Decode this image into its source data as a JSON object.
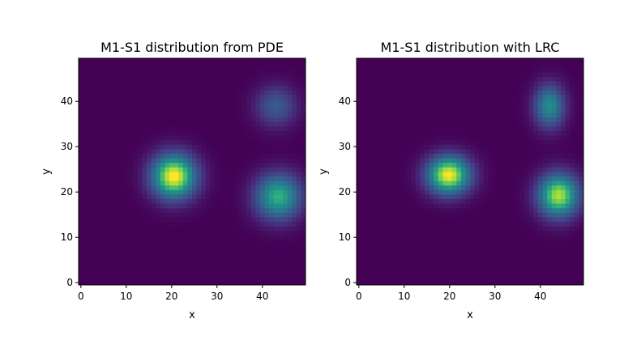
{
  "chart_data": [
    {
      "type": "heatmap",
      "title": "M1-S1 distribution from PDE",
      "xlabel": "x",
      "ylabel": "y",
      "xlim": [
        -0.5,
        49.5
      ],
      "ylim": [
        -0.5,
        49.5
      ],
      "xticks": [
        0,
        10,
        20,
        30,
        40
      ],
      "yticks": [
        0,
        10,
        20,
        30,
        40
      ],
      "colormap": "viridis",
      "grid": false,
      "blobs": [
        {
          "x": 20.5,
          "y": 23.5,
          "amplitude": 1.0,
          "sigma_x": 3.5,
          "sigma_y": 3.5
        },
        {
          "x": 43.5,
          "y": 19.0,
          "amplitude": 0.72,
          "sigma_x": 3.6,
          "sigma_y": 3.6
        },
        {
          "x": 43.0,
          "y": 39.0,
          "amplitude": 0.35,
          "sigma_x": 3.2,
          "sigma_y": 3.2
        }
      ]
    },
    {
      "type": "heatmap",
      "title": "M1-S1 distribution with LRC",
      "xlabel": "x",
      "ylabel": "y",
      "xlim": [
        -0.5,
        49.5
      ],
      "ylim": [
        -0.5,
        49.5
      ],
      "xticks": [
        0,
        10,
        20,
        30,
        40
      ],
      "yticks": [
        0,
        10,
        20,
        30,
        40
      ],
      "colormap": "viridis",
      "grid": false,
      "blobs": [
        {
          "x": 19.8,
          "y": 23.8,
          "amplitude": 1.0,
          "sigma_x": 3.4,
          "sigma_y": 3.0
        },
        {
          "x": 44.0,
          "y": 19.3,
          "amplitude": 0.92,
          "sigma_x": 3.2,
          "sigma_y": 3.4
        },
        {
          "x": 42.0,
          "y": 39.0,
          "amplitude": 0.6,
          "sigma_x": 2.4,
          "sigma_y": 3.4
        }
      ]
    }
  ]
}
